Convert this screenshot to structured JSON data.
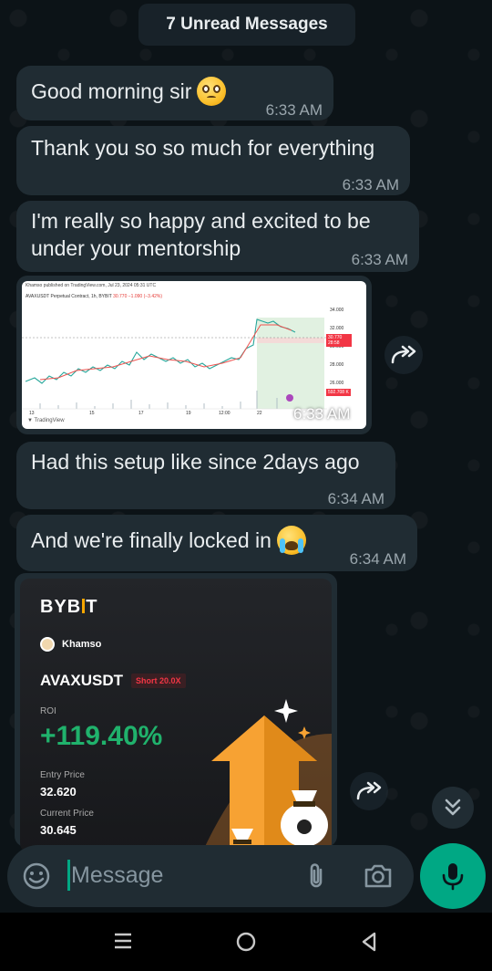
{
  "chat": {
    "unread_banner": "7 Unread Messages",
    "messages": [
      {
        "text": "Good morning sir",
        "emoji": "pleading-face",
        "time": "6:33 AM"
      },
      {
        "text": "Thank you so so much for everything",
        "time": "6:33 AM"
      },
      {
        "text_line1": "I'm really so happy and excited to be",
        "text_line2": "under your mentorship",
        "time": "6:33 AM"
      },
      {
        "type": "image",
        "time": "6:33 AM"
      },
      {
        "text": "Had this setup like since 2days ago",
        "time": "6:34 AM"
      },
      {
        "text": "And we're finally locked in",
        "emoji": "loudly-crying-face",
        "time": "6:34 AM"
      },
      {
        "type": "image"
      }
    ]
  },
  "chart_image": {
    "header": "Khamso published on TradingView.com, Jul 23, 2024 05:31 UTC",
    "symbol_line": "AVAXUSDT Perpetual Contract, 1h, BYBIT",
    "price_change": "30.770 −1.090 (−3.42%)",
    "y_ticks": [
      "34.000",
      "32.000",
      "30.000",
      "28.000",
      "26.000"
    ],
    "x_ticks": [
      "13",
      "15",
      "17",
      "19",
      "12:00",
      "22"
    ],
    "price_tag": "30.770",
    "price_tag_sub": "28:58",
    "stop_tag": "592.708 K",
    "logo": "TradingView"
  },
  "bybit_card": {
    "logo_left": "BYB",
    "logo_right": "T",
    "user": "Khamso",
    "pair": "AVAXUSDT",
    "badge": "Short 20.0X",
    "roi_label": "ROI",
    "roi": "+119.40%",
    "entry_label": "Entry Price",
    "entry_value": "32.620",
    "current_label": "Current Price",
    "current_value": "30.645"
  },
  "input": {
    "placeholder": "Message"
  },
  "colors": {
    "accent": "#00a884",
    "bubble": "#202c33",
    "profit": "#20b26c",
    "short": "#f23645"
  }
}
